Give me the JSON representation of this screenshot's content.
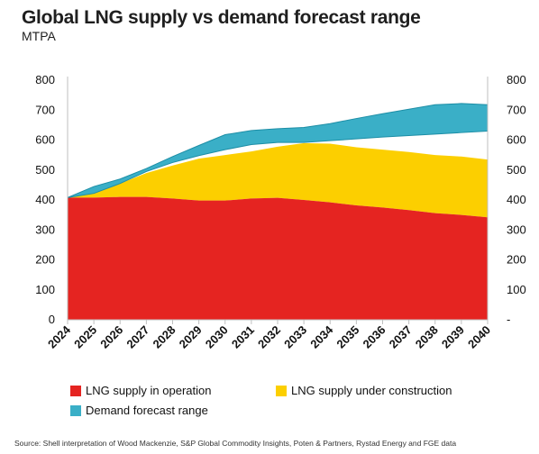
{
  "title": "Global LNG supply vs demand forecast range",
  "subtitle": "MTPA",
  "source": "Source: Shell interpretation of Wood Mackenzie, S&P Global Commodity Insights, Poten & Partners, Rystad Energy and FGE data",
  "colors": {
    "operation": "#e52421",
    "construction": "#fccf00",
    "demand": "#3aafc7",
    "axis": "#bfbfbf"
  },
  "legend": {
    "operation": "LNG supply in operation",
    "construction": "LNG supply under construction",
    "demand": "Demand forecast range"
  },
  "y_right_labels": [
    "-",
    "100",
    "200",
    "300",
    "400",
    "500",
    "600",
    "700",
    "800"
  ],
  "chart_data": {
    "type": "area",
    "ylim": [
      0,
      800
    ],
    "yticks": [
      0,
      100,
      200,
      300,
      400,
      500,
      600,
      700,
      800
    ],
    "categories": [
      "2024",
      "2025",
      "2026",
      "2027",
      "2028",
      "2029",
      "2030",
      "2031",
      "2032",
      "2033",
      "2034",
      "2035",
      "2036",
      "2037",
      "2038",
      "2039",
      "2040"
    ],
    "series": [
      {
        "name": "LNG supply in operation",
        "values": [
          408,
          408,
          410,
          410,
          405,
          398,
          398,
          405,
          407,
          400,
          392,
          382,
          375,
          366,
          356,
          350,
          342
        ]
      },
      {
        "name": "LNG supply under construction",
        "values": [
          408,
          422,
          455,
          490,
          515,
          538,
          550,
          562,
          578,
          590,
          588,
          576,
          568,
          560,
          550,
          545,
          535
        ]
      }
    ],
    "demand_range": {
      "name": "Demand forecast range",
      "low": [
        408,
        422,
        455,
        495,
        525,
        548,
        568,
        585,
        592,
        592,
        598,
        604,
        610,
        615,
        620,
        625,
        630
      ],
      "high": [
        408,
        445,
        470,
        505,
        545,
        582,
        618,
        632,
        638,
        642,
        655,
        672,
        688,
        703,
        718,
        722,
        718
      ]
    }
  }
}
